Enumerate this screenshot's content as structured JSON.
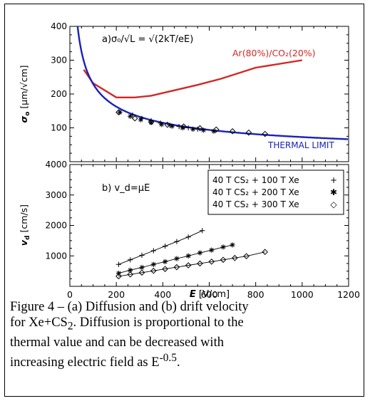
{
  "chart_data": [
    {
      "type": "line",
      "panel_label": "a)",
      "annotation": "σ₀/√L = √(2kT/eE)",
      "ylabel_symbol": "σ",
      "ylabel_sub": "o",
      "ylabel_unit": "[μm/√cm]",
      "ylim": [
        0,
        400
      ],
      "xlim": [
        0,
        1200
      ],
      "yticks": [
        100,
        200,
        300,
        400
      ],
      "xticks": [
        0,
        200,
        400,
        600,
        800,
        1000,
        1200
      ],
      "series": [
        {
          "name": "Ar(80%)/CO₂(20%)",
          "color": "#d42626",
          "style": "line",
          "x": [
            60,
            100,
            200,
            280,
            350,
            450,
            550,
            650,
            800,
            1000
          ],
          "y": [
            272,
            232,
            190,
            190,
            195,
            211,
            227,
            245,
            278,
            300
          ]
        },
        {
          "name": "THERMAL LIMIT",
          "color": "#1a22b8",
          "style": "curve",
          "function": "k/sqrt(E)",
          "k": 2300,
          "x_range": [
            33,
            1200
          ]
        },
        {
          "name": "40 T CS₂ + 100 T Xe",
          "marker": "plus",
          "x": [
            270,
            310,
            350,
            390,
            430,
            470,
            510,
            550
          ],
          "y": [
            138,
            128,
            121,
            114,
            108,
            104,
            100,
            96
          ]
        },
        {
          "name": "40 T CS₂ + 200 T Xe",
          "marker": "star",
          "x": [
            215,
            260,
            305,
            350,
            395,
            440,
            485,
            530,
            575,
            620
          ],
          "y": [
            146,
            134,
            124,
            116,
            110,
            105,
            100,
            96,
            93,
            90
          ]
        },
        {
          "name": "40 T CS₂ + 300 T Xe",
          "marker": "diamond",
          "x": [
            210,
            280,
            350,
            420,
            490,
            560,
            630,
            700,
            770,
            840
          ],
          "y": [
            146,
            128,
            117,
            109,
            104,
            99,
            95,
            90,
            86,
            82
          ]
        }
      ],
      "thermal_label": "THERMAL LIMIT",
      "ar_label": "Ar(80%)/CO₂(20%)"
    },
    {
      "type": "line",
      "panel_label": "b)",
      "annotation": "v_d=μE",
      "ylabel_symbol": "v",
      "ylabel_sub": "d",
      "ylabel_unit": "[cm/s]",
      "xlabel": "E [V/cm]",
      "ylim": [
        0,
        4000
      ],
      "xlim": [
        0,
        1200
      ],
      "yticks": [
        1000,
        2000,
        3000,
        4000
      ],
      "xticks": [
        0,
        200,
        400,
        600,
        800,
        1000,
        1200
      ],
      "xticklabels": [
        "0",
        "200",
        "400",
        "600",
        "800",
        "1000",
        "1200"
      ],
      "legend": [
        {
          "text": "40 T CS₂ + 100 T Xe",
          "marker": "+"
        },
        {
          "text": "40 T CS₂ + 200 T Xe",
          "marker": "✱"
        },
        {
          "text": "40 T CS₂ + 300 T Xe",
          "marker": "◇"
        }
      ],
      "legend_position": "top-right",
      "series": [
        {
          "name": "40 T CS₂ + 100 T Xe",
          "marker": "plus",
          "x": [
            210,
            260,
            310,
            360,
            410,
            460,
            510,
            570
          ],
          "y": [
            720,
            870,
            1020,
            1170,
            1320,
            1470,
            1620,
            1830
          ]
        },
        {
          "name": "40 T CS₂ + 200 T Xe",
          "marker": "star",
          "x": [
            210,
            260,
            310,
            360,
            410,
            460,
            510,
            560,
            610,
            660,
            700
          ],
          "y": [
            430,
            530,
            620,
            720,
            810,
            910,
            1000,
            1100,
            1190,
            1290,
            1360
          ]
        },
        {
          "name": "40 T CS₂ + 300 T Xe",
          "marker": "diamond",
          "x": [
            210,
            260,
            310,
            360,
            410,
            460,
            510,
            560,
            610,
            660,
            710,
            760,
            840
          ],
          "y": [
            330,
            390,
            450,
            510,
            570,
            630,
            690,
            750,
            810,
            870,
            930,
            990,
            1130
          ]
        }
      ]
    }
  ],
  "caption": {
    "line1": "Figure 4 – (a) Diffusion and (b) drift velocity",
    "line2_pre": "for Xe+CS",
    "line2_sub": "2",
    "line2_post": ".  Diffusion is proportional to the",
    "line3": "thermal value and can be decreased with",
    "line4_pre": "increasing electric field as E",
    "line4_sup": "-0.5",
    "line4_post": "."
  }
}
